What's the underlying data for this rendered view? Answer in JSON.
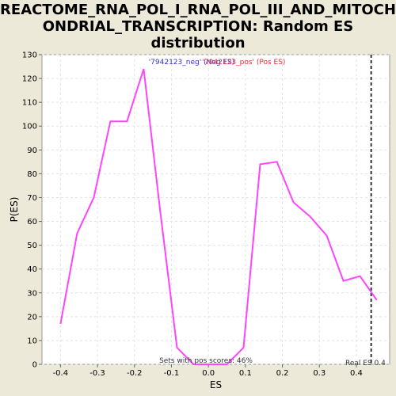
{
  "chart_data": {
    "type": "line",
    "title_lines": [
      "REACTOME_RNA_POL_I_RNA_POL_III_AND_MITOCH",
      "ONDRIAL_TRANSCRIPTION: Random ES",
      "distribution"
    ],
    "xlabel": "ES",
    "ylabel": "P(ES)",
    "xlim": [
      -0.45,
      0.49
    ],
    "ylim": [
      0,
      130
    ],
    "x_ticks": [
      -0.4,
      -0.3,
      -0.2,
      -0.1,
      0.0,
      0.1,
      0.2,
      0.3,
      0.4
    ],
    "x_tick_labels": [
      "-0.4",
      "-0.3",
      "-0.2",
      "-0.1",
      "0.0",
      "0.1",
      "0.2",
      "0.3",
      "0.4"
    ],
    "y_ticks": [
      0,
      10,
      20,
      30,
      40,
      50,
      60,
      70,
      80,
      90,
      100,
      110,
      120,
      130
    ],
    "y_tick_labels": [
      "0",
      "10",
      "20",
      "30",
      "40",
      "50",
      "60",
      "70",
      "80",
      "90",
      "100",
      "110",
      "120",
      "130"
    ],
    "grid": true,
    "series": [
      {
        "color": "#ff44ff",
        "x": [
          -0.4,
          -0.355,
          -0.31,
          -0.265,
          -0.22,
          -0.175,
          -0.13,
          -0.085,
          -0.04,
          0.005,
          0.05,
          0.095,
          0.14,
          0.185,
          0.23,
          0.275,
          0.32,
          0.365,
          0.41,
          0.455
        ],
        "y": [
          17,
          55,
          70,
          102,
          102,
          124,
          64,
          7,
          0,
          0,
          0,
          7,
          84,
          85,
          68,
          62,
          54,
          35,
          37,
          27
        ]
      }
    ],
    "real_es": 0.44,
    "real_es_color": "#333333",
    "annotations": {
      "neg_label": "'7942123_neg' (Neg ES)",
      "pos_label": "'7942123_pos' (Pos ES)",
      "neg_color": "#3333cc",
      "pos_color": "#e83030",
      "sets_label": "Sets with pos scores: 46%",
      "real_es_label": "Real ES 0.4"
    }
  }
}
